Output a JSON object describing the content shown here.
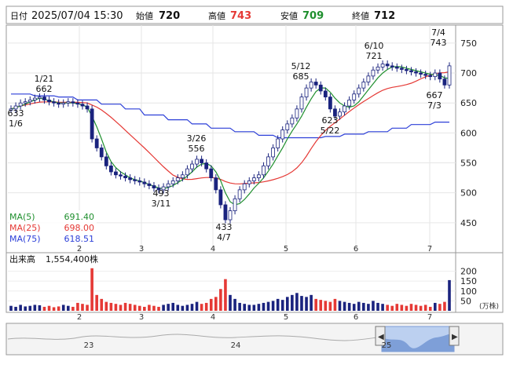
{
  "header": {
    "date_label": "日付",
    "datetime": "2025/07/04 15:30",
    "open_label": "始値",
    "open_value": "720",
    "high_label": "高値",
    "high_value": "743",
    "low_label": "安値",
    "low_value": "709",
    "close_label": "終値",
    "close_value": "712"
  },
  "colors": {
    "up": "#1a237e",
    "down": "#1a237e",
    "ma5": "#1f8f2e",
    "ma25": "#e53935",
    "ma75": "#2c3fd8",
    "high_text": "#e53935",
    "low_text": "#1f8f2e",
    "volume_up": "#1a237e",
    "volume_down": "#e53935"
  },
  "chart_data": [
    {
      "type": "candlestick",
      "title": "",
      "y_ticks": [
        "450",
        "500",
        "550",
        "600",
        "650",
        "700",
        "750"
      ],
      "ylim": [
        400,
        780
      ],
      "x_month_labels": [
        "2",
        "3",
        "4",
        "5",
        "6",
        "7"
      ],
      "annotations": [
        {
          "label_top": "1/21",
          "label_bottom": "662",
          "kind": "high"
        },
        {
          "label_top": "633",
          "label_bottom": "1/6",
          "kind": "low"
        },
        {
          "label_top": "3/26",
          "label_bottom": "556",
          "kind": "high"
        },
        {
          "label_top": "493",
          "label_bottom": "3/11",
          "kind": "low"
        },
        {
          "label_top": "433",
          "label_bottom": "4/7",
          "kind": "low"
        },
        {
          "label_top": "5/12",
          "label_bottom": "685",
          "kind": "high"
        },
        {
          "label_top": "623",
          "label_bottom": "5/22",
          "kind": "low"
        },
        {
          "label_top": "6/10",
          "label_bottom": "721",
          "kind": "high"
        },
        {
          "label_top": "7/4",
          "label_bottom": "743",
          "kind": "high"
        },
        {
          "label_top": "667",
          "label_bottom": "7/3",
          "kind": "low"
        }
      ],
      "moving_averages": [
        {
          "name": "MA(5)",
          "value": "691.40"
        },
        {
          "name": "MA(25)",
          "value": "698.00"
        },
        {
          "name": "MA(75)",
          "value": "618.51"
        }
      ],
      "close_series": [
        640,
        645,
        650,
        652,
        655,
        658,
        660,
        655,
        652,
        650,
        648,
        650,
        652,
        650,
        648,
        645,
        640,
        590,
        575,
        560,
        545,
        535,
        530,
        528,
        525,
        522,
        520,
        518,
        515,
        512,
        508,
        505,
        510,
        515,
        520,
        525,
        530,
        540,
        548,
        556,
        550,
        540,
        525,
        505,
        480,
        455,
        470,
        490,
        505,
        515,
        520,
        525,
        530,
        545,
        560,
        575,
        590,
        605,
        615,
        625,
        640,
        660,
        675,
        685,
        680,
        670,
        660,
        640,
        628,
        635,
        645,
        655,
        665,
        675,
        685,
        695,
        705,
        710,
        715,
        712,
        710,
        708,
        706,
        704,
        702,
        700,
        698,
        696,
        694,
        700,
        690,
        680,
        712
      ],
      "ma5_series": [
        640,
        642,
        645,
        648,
        652,
        655,
        658,
        656,
        654,
        652,
        650,
        650,
        650,
        650,
        649,
        647,
        643,
        628,
        610,
        590,
        568,
        552,
        542,
        535,
        530,
        525,
        522,
        520,
        517,
        514,
        511,
        508,
        507,
        509,
        512,
        517,
        522,
        528,
        535,
        543,
        548,
        549,
        545,
        535,
        520,
        500,
        485,
        480,
        482,
        489,
        498,
        508,
        516,
        525,
        536,
        548,
        562,
        575,
        590,
        603,
        615,
        628,
        643,
        657,
        669,
        675,
        675,
        668,
        658,
        650,
        645,
        643,
        645,
        652,
        662,
        672,
        682,
        692,
        700,
        706,
        710,
        711,
        710,
        708,
        706,
        704,
        702,
        700,
        698,
        697,
        696,
        692,
        691
      ]
    },
    {
      "type": "bar",
      "title": "出来高",
      "volume_text": "1,554,400株",
      "unit_label": "(万株)",
      "y_ticks": [
        "50",
        "100",
        "150",
        "200"
      ],
      "ylim": [
        0,
        230
      ],
      "values": [
        25,
        20,
        30,
        22,
        25,
        30,
        28,
        20,
        25,
        18,
        22,
        30,
        25,
        20,
        40,
        35,
        30,
        215,
        80,
        60,
        45,
        40,
        35,
        30,
        40,
        35,
        30,
        25,
        20,
        30,
        25,
        20,
        30,
        35,
        40,
        30,
        25,
        30,
        35,
        45,
        35,
        40,
        60,
        70,
        110,
        160,
        80,
        60,
        40,
        35,
        30,
        30,
        35,
        40,
        45,
        50,
        60,
        55,
        70,
        80,
        90,
        75,
        70,
        80,
        60,
        55,
        50,
        45,
        60,
        50,
        45,
        40,
        35,
        45,
        40,
        35,
        50,
        40,
        35,
        30,
        25,
        35,
        30,
        25,
        35,
        30,
        25,
        30,
        20,
        40,
        35,
        45,
        155
      ]
    }
  ],
  "navigator": {
    "year_labels": [
      "23",
      "24",
      "25"
    ]
  }
}
